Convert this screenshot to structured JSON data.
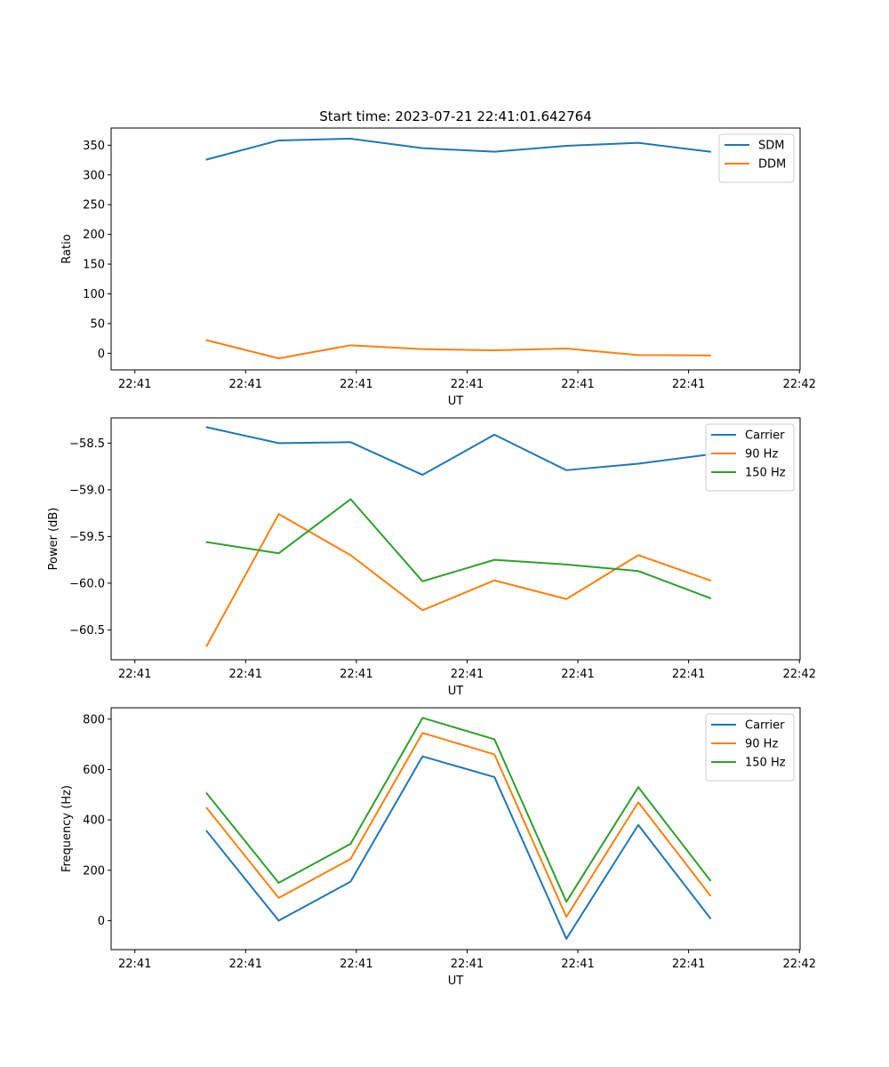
{
  "title": "Start time: 2023-07-21 22:41:01.642764",
  "colors": {
    "blue": "#1f77b4",
    "orange": "#ff7f0e",
    "green": "#2ca02c"
  },
  "chart_data": [
    {
      "type": "line",
      "xlabel": "UT",
      "ylabel": "Ratio",
      "x": [
        1,
        2,
        3,
        4,
        5,
        6,
        7,
        8
      ],
      "xlim": [
        -0.33,
        9.25
      ],
      "xticks": [
        0,
        1.54,
        3.08,
        4.62,
        6.16,
        7.7,
        9.24
      ],
      "xtick_labels": [
        "22:41",
        "22:41",
        "22:41",
        "22:41",
        "22:41",
        "22:41",
        "22:42"
      ],
      "ylim": [
        -27.9,
        378.9
      ],
      "yticks": [
        0,
        50,
        100,
        150,
        200,
        250,
        300,
        350
      ],
      "ytick_labels": [
        "0",
        "50",
        "100",
        "150",
        "200",
        "250",
        "300",
        "350"
      ],
      "legend": "top-right",
      "series": [
        {
          "name": "SDM",
          "color": "#1f77b4",
          "values": [
            326,
            358,
            361,
            345,
            339,
            349,
            354,
            339
          ]
        },
        {
          "name": "DDM",
          "color": "#ff7f0e",
          "values": [
            22,
            -8.5,
            13.5,
            7,
            5,
            8,
            -3,
            -3.5
          ]
        }
      ]
    },
    {
      "type": "line",
      "xlabel": "UT",
      "ylabel": "Power (dB)",
      "x": [
        1,
        2,
        3,
        4,
        5,
        6,
        7,
        8
      ],
      "xlim": [
        -0.33,
        9.25
      ],
      "xticks": [
        0,
        1.54,
        3.08,
        4.62,
        6.16,
        7.7,
        9.24
      ],
      "xtick_labels": [
        "22:41",
        "22:41",
        "22:41",
        "22:41",
        "22:41",
        "22:41",
        "22:42"
      ],
      "ylim": [
        -60.82,
        -58.23
      ],
      "yticks": [
        -60.5,
        -60.0,
        -59.5,
        -59.0,
        -58.5
      ],
      "ytick_labels": [
        "−60.5",
        "−60.0",
        "−59.5",
        "−59.0",
        "−58.5"
      ],
      "legend": "top-right",
      "series": [
        {
          "name": "Carrier",
          "color": "#1f77b4",
          "values": [
            -58.33,
            -58.5,
            -58.49,
            -58.84,
            -58.41,
            -58.79,
            -58.72,
            -58.62
          ]
        },
        {
          "name": "90 Hz",
          "color": "#ff7f0e",
          "values": [
            -60.67,
            -59.26,
            -59.7,
            -60.29,
            -59.97,
            -60.17,
            -59.7,
            -59.97
          ]
        },
        {
          "name": "150 Hz",
          "color": "#2ca02c",
          "values": [
            -59.56,
            -59.68,
            -59.1,
            -59.98,
            -59.75,
            -59.8,
            -59.87,
            -60.16
          ]
        }
      ]
    },
    {
      "type": "line",
      "xlabel": "UT",
      "ylabel": "Frequency (Hz)",
      "x": [
        1,
        2,
        3,
        4,
        5,
        6,
        7,
        8
      ],
      "xlim": [
        -0.33,
        9.25
      ],
      "xticks": [
        0,
        1.54,
        3.08,
        4.62,
        6.16,
        7.7,
        9.24
      ],
      "xtick_labels": [
        "22:41",
        "22:41",
        "22:41",
        "22:41",
        "22:41",
        "22:41",
        "22:42"
      ],
      "ylim": [
        -115,
        845
      ],
      "yticks": [
        0,
        200,
        400,
        600,
        800
      ],
      "ytick_labels": [
        "0",
        "200",
        "400",
        "600",
        "800"
      ],
      "legend": "top-right",
      "series": [
        {
          "name": "Carrier",
          "color": "#1f77b4",
          "values": [
            355,
            0,
            155,
            652,
            570,
            -72,
            380,
            10
          ]
        },
        {
          "name": "90 Hz",
          "color": "#ff7f0e",
          "values": [
            447,
            90,
            245,
            745,
            660,
            15,
            470,
            100
          ]
        },
        {
          "name": "150 Hz",
          "color": "#2ca02c",
          "values": [
            505,
            150,
            305,
            805,
            720,
            75,
            530,
            160
          ]
        }
      ]
    }
  ]
}
